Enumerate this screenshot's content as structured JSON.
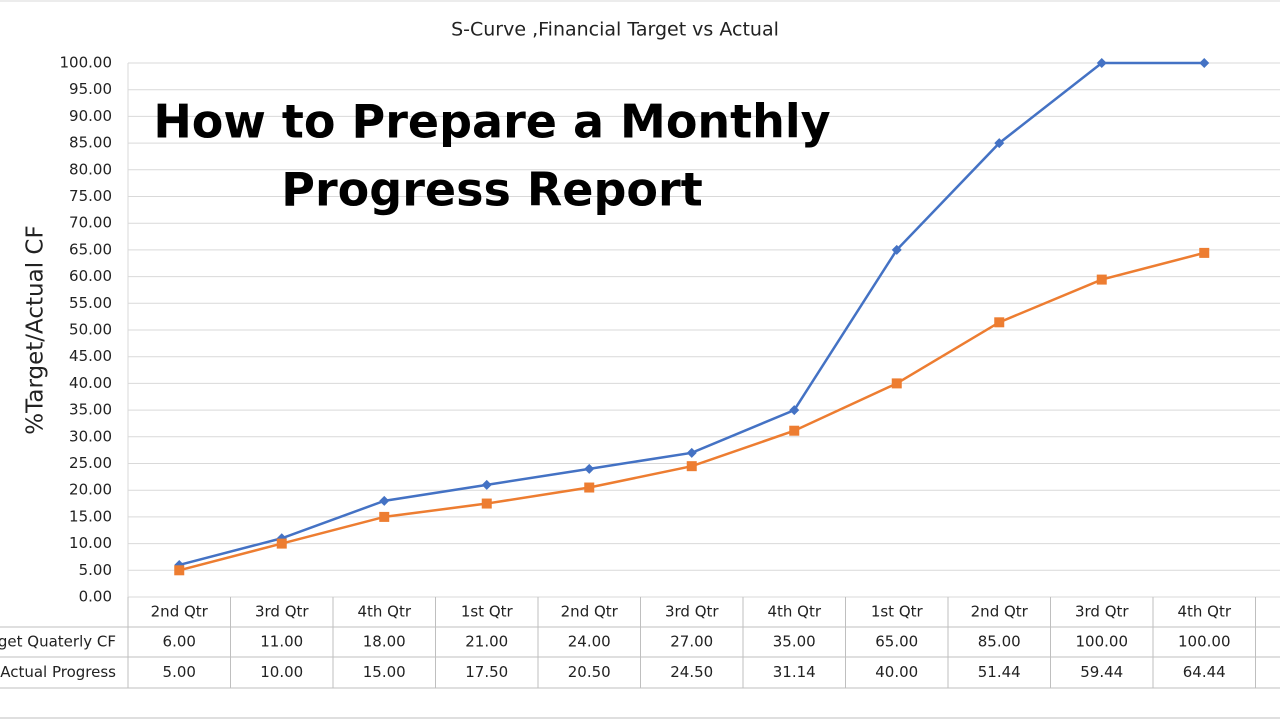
{
  "chart_data": {
    "type": "line",
    "title": "S-Curve ,Financial Target vs Actual",
    "overlay_title": [
      "How to Prepare a Monthly",
      "Progress Report"
    ],
    "y_label": "%Target/Actual CF",
    "categories": [
      "2nd Qtr",
      "3rd Qtr",
      "4th Qtr",
      "1st Qtr",
      "2nd Qtr",
      "3rd Qtr",
      "4th Qtr",
      "1st Qtr",
      "2nd Qtr",
      "3rd Qtr",
      "4th Qtr"
    ],
    "series": [
      {
        "name": "get  Quaterly CF",
        "color": "#4472c4",
        "marker": "diamond",
        "values": [
          6,
          11,
          18,
          21,
          24,
          27,
          35,
          65,
          85,
          100,
          100
        ],
        "value_labels": [
          "6.00",
          "11.00",
          "18.00",
          "21.00",
          "24.00",
          "27.00",
          "35.00",
          "65.00",
          "85.00",
          "100.00",
          "100.00"
        ]
      },
      {
        "name": "Actual Progress",
        "color": "#ed7d31",
        "marker": "square",
        "values": [
          5,
          10,
          15,
          17.5,
          20.5,
          24.5,
          31.14,
          40,
          51.44,
          59.44,
          64.44
        ],
        "value_labels": [
          "5.00",
          "10.00",
          "15.00",
          "17.50",
          "20.50",
          "24.50",
          "31.14",
          "40.00",
          "51.44",
          "59.44",
          "64.44"
        ]
      }
    ],
    "ylim": [
      0,
      100
    ],
    "yticks": [
      {
        "value": 0,
        "label": "0.00"
      },
      {
        "value": 5,
        "label": "5.00"
      },
      {
        "value": 10,
        "label": "10.00"
      },
      {
        "value": 15,
        "label": "15.00"
      },
      {
        "value": 20,
        "label": "20.00"
      },
      {
        "value": 25,
        "label": "25.00"
      },
      {
        "value": 30,
        "label": "30.00"
      },
      {
        "value": 35,
        "label": "35.00"
      },
      {
        "value": 40,
        "label": "40.00"
      },
      {
        "value": 45,
        "label": "45.00"
      },
      {
        "value": 50,
        "label": "50.00"
      },
      {
        "value": 55,
        "label": "55.00"
      },
      {
        "value": 60,
        "label": "60.00"
      },
      {
        "value": 65,
        "label": "65.00"
      },
      {
        "value": 70,
        "label": "70.00"
      },
      {
        "value": 75,
        "label": "75.00"
      },
      {
        "value": 80,
        "label": "80.00"
      },
      {
        "value": 85,
        "label": "85.00"
      },
      {
        "value": 90,
        "label": "90.00"
      },
      {
        "value": 95,
        "label": "95.00"
      },
      {
        "value": 100,
        "label": "100.00"
      }
    ],
    "grid": true,
    "data_table": true
  }
}
